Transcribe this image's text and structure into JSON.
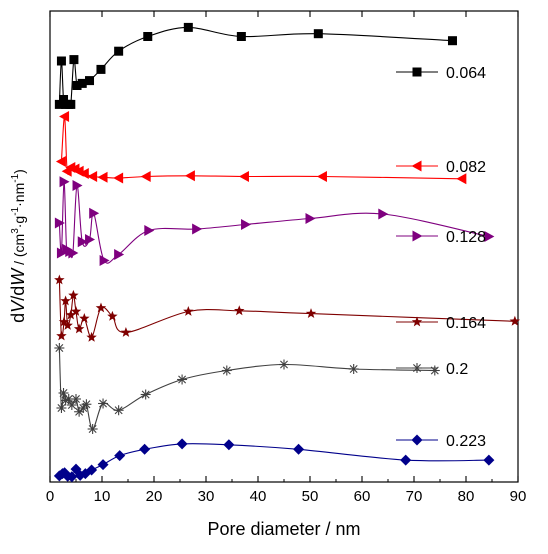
{
  "chart_data": {
    "type": "line",
    "xlabel": "Pore diameter / nm",
    "ylabel_parts": {
      "d1": "d",
      "v": "V",
      "slash1": "/d",
      "w": "W",
      "units_open": " / (cm",
      "sup1": "3",
      "units_g": "·g",
      "sup2": "-1",
      "units_nm": "·nm",
      "sup3": "-1",
      "units_close": ")"
    },
    "xlim": [
      0,
      90
    ],
    "xticks": [
      0,
      10,
      20,
      30,
      40,
      50,
      60,
      70,
      80,
      90
    ],
    "y_ticks_shown": false,
    "grid": false,
    "legend_placement": "right, beside each curve",
    "series": [
      {
        "name": "0.064",
        "color": "#000000",
        "marker": "square",
        "points": [
          [
            1.8,
            0.08
          ],
          [
            2.2,
            0.7
          ],
          [
            2.6,
            0.15
          ],
          [
            3,
            0.08
          ],
          [
            3.6,
            0.08
          ],
          [
            4,
            0.08
          ],
          [
            4.6,
            0.72
          ],
          [
            5.2,
            0.35
          ],
          [
            6.2,
            0.38
          ],
          [
            7.6,
            0.42
          ],
          [
            9.8,
            0.58
          ],
          [
            13.2,
            0.84
          ],
          [
            18.8,
            1.05
          ],
          [
            26.6,
            1.18
          ],
          [
            36.8,
            1.05
          ],
          [
            51.6,
            1.09
          ],
          [
            77.4,
            0.99
          ]
        ]
      },
      {
        "name": "0.082",
        "color": "#ff0000",
        "marker": "triangle-left",
        "points": [
          [
            2.2,
            0.38
          ],
          [
            2.8,
            0.98
          ],
          [
            3.3,
            0.25
          ],
          [
            4.0,
            0.3
          ],
          [
            4.8,
            0.28
          ],
          [
            5.6,
            0.25
          ],
          [
            6.6,
            0.22
          ],
          [
            8.2,
            0.18
          ],
          [
            10.2,
            0.17
          ],
          [
            13.2,
            0.16
          ],
          [
            18.5,
            0.18
          ],
          [
            27,
            0.19
          ],
          [
            37.4,
            0.18
          ],
          [
            52.4,
            0.18
          ],
          [
            79.2,
            0.15
          ]
        ]
      },
      {
        "name": "0.128",
        "color": "#7f007f",
        "marker": "triangle-right",
        "points": [
          [
            1.8,
            0.6
          ],
          [
            2.2,
            0.2
          ],
          [
            2.7,
            1.15
          ],
          [
            3.2,
            0.25
          ],
          [
            3.8,
            0.22
          ],
          [
            4.4,
            0.2
          ],
          [
            5.2,
            1.1
          ],
          [
            6.2,
            0.35
          ],
          [
            7.6,
            0.38
          ],
          [
            8.4,
            0.73
          ],
          [
            10.4,
            0.1
          ],
          [
            13.2,
            0.18
          ],
          [
            19,
            0.5
          ],
          [
            28.2,
            0.52
          ],
          [
            37.6,
            0.58
          ],
          [
            50,
            0.66
          ],
          [
            64,
            0.72
          ],
          [
            84.4,
            0.42
          ]
        ]
      },
      {
        "name": "0.164",
        "color": "#7f0000",
        "marker": "star",
        "points": [
          [
            1.8,
            1.0
          ],
          [
            2.2,
            0.2
          ],
          [
            2.7,
            0.4
          ],
          [
            3.0,
            0.7
          ],
          [
            3.4,
            0.35
          ],
          [
            4.0,
            0.5
          ],
          [
            4.5,
            0.78
          ],
          [
            5.0,
            0.55
          ],
          [
            5.6,
            0.3
          ],
          [
            6.6,
            0.45
          ],
          [
            8.0,
            0.18
          ],
          [
            9.8,
            0.6
          ],
          [
            12.0,
            0.48
          ],
          [
            14.6,
            0.25
          ],
          [
            26.6,
            0.55
          ],
          [
            36.4,
            0.56
          ],
          [
            50.2,
            0.52
          ],
          [
            89.4,
            0.41
          ]
        ]
      },
      {
        "name": "0.2",
        "color": "#404040",
        "marker": "asterisk",
        "points": [
          [
            1.8,
            1.2
          ],
          [
            2.2,
            0.4
          ],
          [
            2.6,
            0.6
          ],
          [
            3.0,
            0.5
          ],
          [
            3.6,
            0.52
          ],
          [
            4.2,
            0.44
          ],
          [
            5.0,
            0.52
          ],
          [
            5.6,
            0.35
          ],
          [
            6.4,
            0.4
          ],
          [
            7.0,
            0.45
          ],
          [
            8.2,
            0.12
          ],
          [
            10.2,
            0.46
          ],
          [
            13.2,
            0.37
          ],
          [
            18.4,
            0.58
          ],
          [
            25.4,
            0.78
          ],
          [
            34,
            0.9
          ],
          [
            45,
            0.98
          ],
          [
            58.4,
            0.92
          ],
          [
            74,
            0.9
          ]
        ]
      },
      {
        "name": "0.223",
        "color": "#00008b",
        "marker": "diamond",
        "points": [
          [
            1.8,
            0.07
          ],
          [
            2.4,
            0.12
          ],
          [
            2.8,
            0.14
          ],
          [
            3.4,
            0.06
          ],
          [
            4.2,
            0.05
          ],
          [
            5.0,
            0.22
          ],
          [
            5.8,
            0.08
          ],
          [
            6.8,
            0.12
          ],
          [
            8.0,
            0.2
          ],
          [
            10.2,
            0.32
          ],
          [
            13.4,
            0.52
          ],
          [
            18.2,
            0.66
          ],
          [
            25.4,
            0.78
          ],
          [
            34.4,
            0.76
          ],
          [
            47.8,
            0.66
          ],
          [
            68.4,
            0.42
          ],
          [
            84.4,
            0.42
          ]
        ]
      }
    ]
  }
}
